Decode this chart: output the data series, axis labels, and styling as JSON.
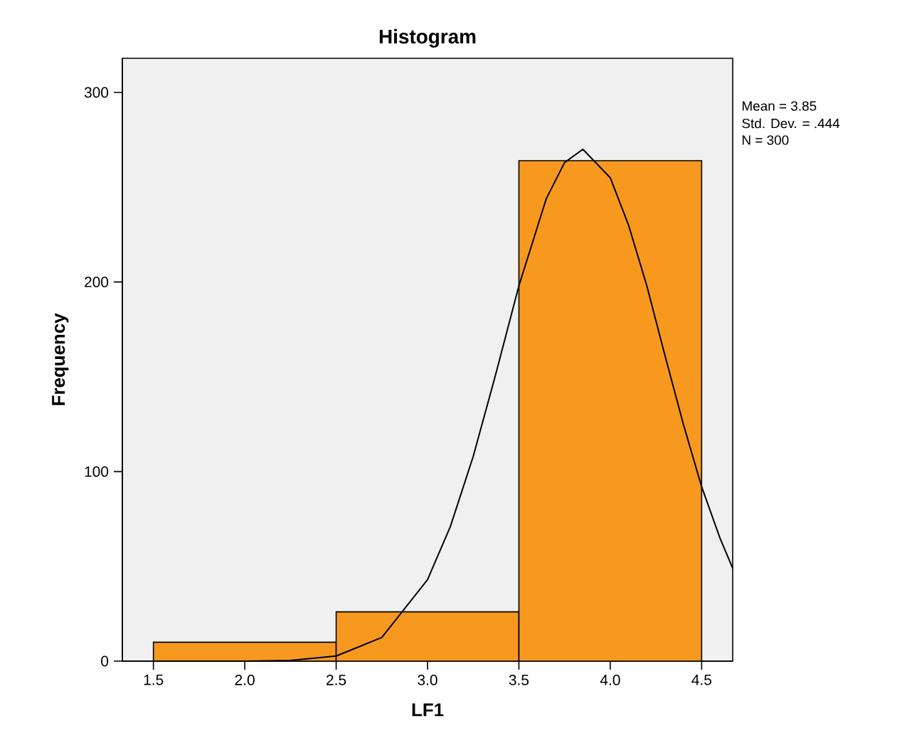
{
  "chart_data": {
    "type": "histogram",
    "title": "Histogram",
    "xlabel": "LF1",
    "ylabel": "Frequency",
    "annotations": [
      "Mean = 3.85",
      "Std. Dev. = .444",
      "N = 300"
    ],
    "bins": [
      1.5,
      2.5,
      3.5,
      4.5
    ],
    "values": [
      10,
      26,
      264
    ],
    "color": "#f7991f",
    "series": [
      {
        "type": "line",
        "color": "#000000",
        "x": [
          1.33,
          2.0,
          2.25,
          2.5,
          2.75,
          3.0,
          3.125,
          3.25,
          3.375,
          3.5,
          3.65,
          3.75,
          3.85,
          4.0,
          4.1,
          4.2,
          4.3,
          4.4,
          4.5,
          4.6,
          4.67
        ],
        "values": [
          0,
          0,
          0.4,
          2.7,
          12.5,
          43,
          71,
          108,
          152,
          198,
          244,
          263,
          270,
          255,
          230,
          198,
          161,
          125,
          92,
          65,
          49
        ]
      }
    ],
    "xlim": [
      1.33,
      4.67
    ],
    "ylim": [
      0,
      318
    ],
    "xticks": [
      1.5,
      {
        "value": 2,
        "label": "2.0"
      },
      2.5,
      {
        "value": 3,
        "label": "3.0"
      },
      3.5,
      {
        "value": 4,
        "label": "4.0"
      },
      4.5
    ],
    "yticks": [
      0,
      100,
      200,
      300
    ]
  }
}
